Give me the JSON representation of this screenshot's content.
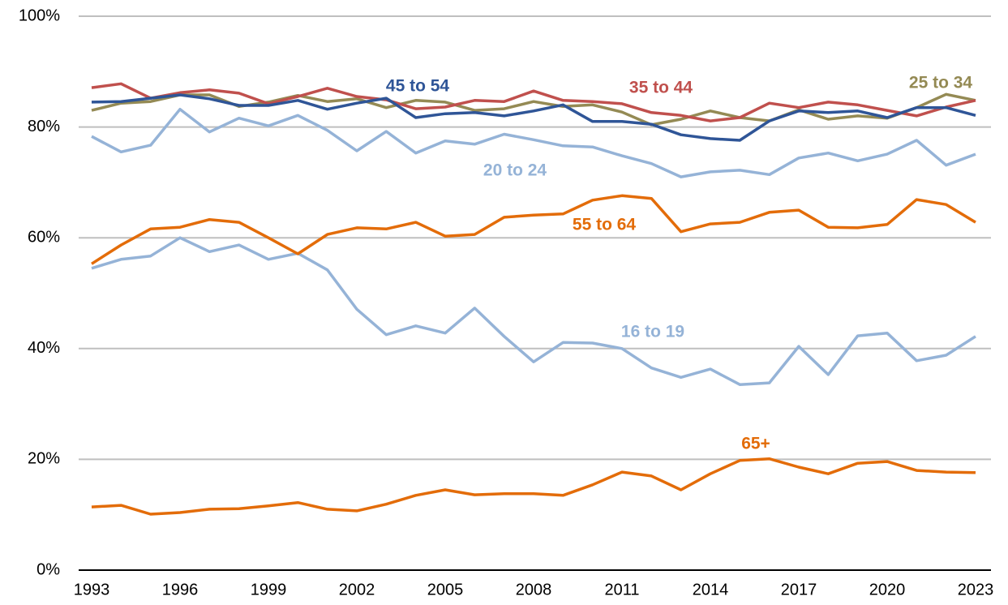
{
  "chart_data": {
    "type": "line",
    "x": [
      1993,
      1994,
      1995,
      1996,
      1997,
      1998,
      1999,
      2000,
      2001,
      2002,
      2003,
      2004,
      2005,
      2006,
      2007,
      2008,
      2009,
      2010,
      2011,
      2012,
      2013,
      2014,
      2015,
      2016,
      2017,
      2018,
      2019,
      2020,
      2021,
      2022,
      2023
    ],
    "xlim": [
      1993,
      2023
    ],
    "xticks": [
      1993,
      1996,
      1999,
      2002,
      2005,
      2008,
      2011,
      2014,
      2017,
      2020,
      2023
    ],
    "ylim": [
      0,
      100
    ],
    "yticks": [
      {
        "value": 0,
        "label": "0%"
      },
      {
        "value": 20,
        "label": "20%"
      },
      {
        "value": 40,
        "label": "40%"
      },
      {
        "value": 60,
        "label": "60%"
      },
      {
        "value": 80,
        "label": "80%"
      },
      {
        "value": 100,
        "label": "100%"
      }
    ],
    "grid": true,
    "series": [
      {
        "name": "16 to 19",
        "color": "#95b3d7",
        "values": [
          54.5,
          56.1,
          56.7,
          60.0,
          57.5,
          58.7,
          56.1,
          57.2,
          54.2,
          47.1,
          42.5,
          44.1,
          42.8,
          47.3,
          42.2,
          37.6,
          41.1,
          41.0,
          40.0,
          36.5,
          34.8,
          36.3,
          33.5,
          33.8,
          40.4,
          35.3,
          42.3,
          42.8,
          37.8,
          38.8,
          42.2
        ]
      },
      {
        "name": "20 to 24",
        "color": "#95b3d7",
        "values": [
          78.3,
          75.5,
          76.7,
          83.2,
          79.1,
          81.6,
          80.2,
          82.1,
          79.4,
          75.7,
          79.2,
          75.3,
          77.5,
          76.9,
          78.7,
          77.7,
          76.6,
          76.4,
          74.8,
          73.4,
          71.0,
          71.9,
          72.2,
          71.4,
          74.4,
          75.3,
          73.9,
          75.1,
          77.6,
          73.1,
          75.1
        ]
      },
      {
        "name": "25 to 34",
        "color": "#948a54",
        "values": [
          83.0,
          84.3,
          84.6,
          85.8,
          85.8,
          83.7,
          84.5,
          85.7,
          84.6,
          85.1,
          83.5,
          84.8,
          84.5,
          83.0,
          83.3,
          84.6,
          83.7,
          84.0,
          82.7,
          80.4,
          81.4,
          82.9,
          81.7,
          81.1,
          83.1,
          81.4,
          82.0,
          81.6,
          83.5,
          85.9,
          84.8
        ]
      },
      {
        "name": "35 to 44",
        "color": "#c0504d",
        "values": [
          87.1,
          87.8,
          85.2,
          86.2,
          86.7,
          86.1,
          84.2,
          85.5,
          87.0,
          85.5,
          84.9,
          83.3,
          83.6,
          84.8,
          84.6,
          86.5,
          84.8,
          84.6,
          84.2,
          82.6,
          82.1,
          81.1,
          81.7,
          84.3,
          83.5,
          84.5,
          84.0,
          83.0,
          82.0,
          83.6,
          84.8
        ]
      },
      {
        "name": "45 to 54",
        "color": "#2f5597",
        "values": [
          84.5,
          84.6,
          85.2,
          85.8,
          85.1,
          83.9,
          83.9,
          84.8,
          83.2,
          84.3,
          85.2,
          81.7,
          82.4,
          82.6,
          82.0,
          82.9,
          84.0,
          81.0,
          81.0,
          80.5,
          78.6,
          77.9,
          77.6,
          81.1,
          82.9,
          82.6,
          82.9,
          81.7,
          83.5,
          83.5,
          82.1
        ]
      },
      {
        "name": "55 to 64",
        "color": "#e36c09",
        "values": [
          55.3,
          58.7,
          61.6,
          61.9,
          63.3,
          62.8,
          60.0,
          57.1,
          60.6,
          61.8,
          61.6,
          62.8,
          60.3,
          60.6,
          63.7,
          64.1,
          64.3,
          66.8,
          67.6,
          67.1,
          61.1,
          62.5,
          62.8,
          64.6,
          65.0,
          61.9,
          61.8,
          62.4,
          66.9,
          66.0,
          62.8
        ]
      },
      {
        "name": "65+",
        "color": "#e36c09",
        "values": [
          11.4,
          11.7,
          10.1,
          10.4,
          11.0,
          11.1,
          11.6,
          12.2,
          11.0,
          10.7,
          11.9,
          13.5,
          14.5,
          13.6,
          13.8,
          13.8,
          13.5,
          15.4,
          17.7,
          17.0,
          14.5,
          17.4,
          19.8,
          20.1,
          18.6,
          17.4,
          19.3,
          19.6,
          18.0,
          17.7,
          17.6
        ]
      }
    ]
  }
}
